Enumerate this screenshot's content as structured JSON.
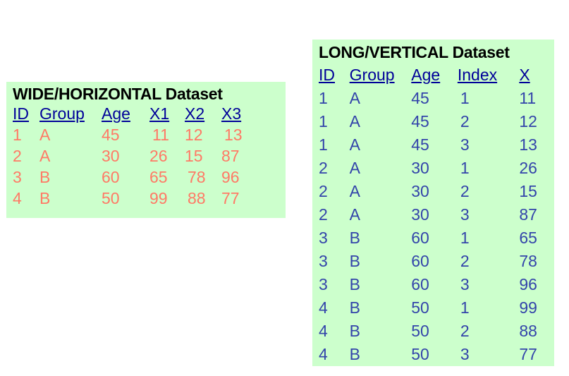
{
  "wide": {
    "title": "WIDE/HORIZONTAL Dataset",
    "headers": [
      "ID",
      "Group",
      "Age",
      "X1",
      "X2",
      "X3"
    ],
    "rows": [
      [
        "1",
        "A",
        "45",
        "11",
        "12",
        "13"
      ],
      [
        "2",
        "A",
        "30",
        "26",
        "15",
        "87"
      ],
      [
        "3",
        "B",
        "60",
        "65",
        "78",
        "96"
      ],
      [
        "4",
        "B",
        "50",
        "99",
        "88",
        "77"
      ]
    ]
  },
  "long": {
    "title": "LONG/VERTICAL Dataset",
    "headers": [
      "ID",
      "Group",
      "Age",
      "Index",
      "X"
    ],
    "rows": [
      [
        "1",
        "A",
        "45",
        "1",
        "11"
      ],
      [
        "1",
        "A",
        "45",
        "2",
        "12"
      ],
      [
        "1",
        "A",
        "45",
        "3",
        "13"
      ],
      [
        "2",
        "A",
        "30",
        "1",
        "26"
      ],
      [
        "2",
        "A",
        "30",
        "2",
        "15"
      ],
      [
        "2",
        "A",
        "30",
        "3",
        "87"
      ],
      [
        "3",
        "B",
        "60",
        "1",
        "65"
      ],
      [
        "3",
        "B",
        "60",
        "2",
        "78"
      ],
      [
        "3",
        "B",
        "60",
        "3",
        "96"
      ],
      [
        "4",
        "B",
        "50",
        "1",
        "99"
      ],
      [
        "4",
        "B",
        "50",
        "2",
        "88"
      ],
      [
        "4",
        "B",
        "50",
        "3",
        "77"
      ]
    ]
  },
  "colors": {
    "panel_background": "#ccffcc",
    "header_text": "#000099",
    "wide_value_text": "#ff7a66",
    "long_value_text": "#3344aa",
    "title_text": "#000000"
  }
}
